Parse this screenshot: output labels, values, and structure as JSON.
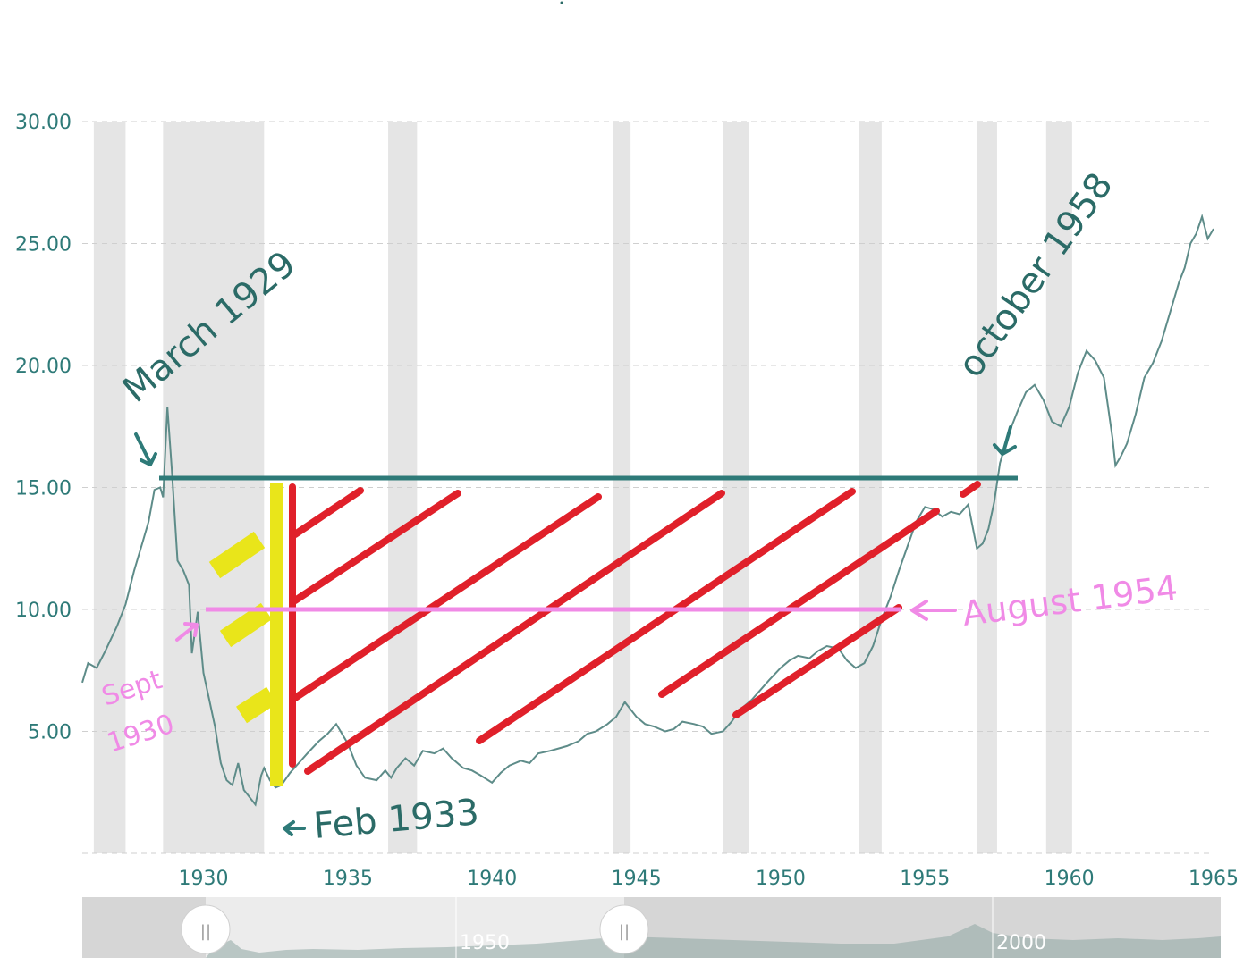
{
  "chart_data": {
    "type": "line",
    "title": "",
    "xlabel": "",
    "ylabel": "",
    "xlim": [
      1925.8,
      1965
    ],
    "ylim": [
      0,
      30
    ],
    "grid": true,
    "y_ticks": [
      "30.00",
      "25.00",
      "20.00",
      "15.00",
      "10.00",
      "5.00"
    ],
    "y_tick_values": [
      30,
      25,
      20,
      15,
      10,
      5
    ],
    "x_ticks": [
      "1930",
      "1935",
      "1940",
      "1945",
      "1950",
      "1955",
      "1960",
      "1965"
    ],
    "x_tick_values": [
      1930,
      1935,
      1940,
      1945,
      1950,
      1955,
      1960,
      1965
    ],
    "recessions": [
      [
        1926.2,
        1927.3
      ],
      [
        1928.6,
        1932.1
      ],
      [
        1936.4,
        1937.4
      ],
      [
        1944.2,
        1944.8
      ],
      [
        1948.0,
        1948.9
      ],
      [
        1952.7,
        1953.5
      ],
      [
        1956.8,
        1957.5
      ],
      [
        1959.2,
        1960.1
      ]
    ],
    "series": [
      {
        "x": [
          1925.8,
          1926.0,
          1926.3,
          1926.6,
          1927.0,
          1927.3,
          1927.6,
          1927.9,
          1928.1,
          1928.3,
          1928.5,
          1928.6,
          1928.75,
          1928.9,
          1929.1,
          1929.3,
          1929.5,
          1929.6,
          1929.8,
          1930.0,
          1930.2,
          1930.4,
          1930.6,
          1930.8,
          1931.0,
          1931.2,
          1931.4,
          1931.6,
          1931.8,
          1932.0,
          1932.1,
          1932.3,
          1932.5,
          1932.7,
          1933.0,
          1933.3,
          1933.6,
          1934.0,
          1934.3,
          1934.6,
          1935.0,
          1935.3,
          1935.6,
          1936.0,
          1936.3,
          1936.5,
          1936.7,
          1937.0,
          1937.3,
          1937.6,
          1938.0,
          1938.3,
          1938.6,
          1939.0,
          1939.3,
          1939.6,
          1940.0,
          1940.3,
          1940.6,
          1941.0,
          1941.3,
          1941.6,
          1942.0,
          1942.3,
          1942.6,
          1943.0,
          1943.3,
          1943.6,
          1944.0,
          1944.3,
          1944.6,
          1945.0,
          1945.3,
          1945.6,
          1946.0,
          1946.3,
          1946.6,
          1947.0,
          1947.3,
          1947.6,
          1948.0,
          1948.3,
          1948.6,
          1949.0,
          1949.3,
          1949.6,
          1950.0,
          1950.3,
          1950.6,
          1951.0,
          1951.3,
          1951.6,
          1952.0,
          1952.3,
          1952.6,
          1952.9,
          1953.2,
          1953.5,
          1953.8,
          1954.1,
          1954.4,
          1954.7,
          1955.0,
          1955.3,
          1955.6,
          1955.9,
          1956.2,
          1956.5,
          1956.8,
          1957.0,
          1957.2,
          1957.4,
          1957.6,
          1957.9,
          1958.2,
          1958.5,
          1958.8,
          1959.1,
          1959.4,
          1959.7,
          1960.0,
          1960.3,
          1960.6,
          1960.9,
          1961.2,
          1961.5,
          1961.6,
          1961.8,
          1962.0,
          1962.3,
          1962.6,
          1962.9,
          1963.2,
          1963.5,
          1963.8,
          1964.0,
          1964.2,
          1964.4,
          1964.6,
          1964.8,
          1965.0
        ],
        "values": [
          7.0,
          7.8,
          7.6,
          8.3,
          9.3,
          10.2,
          11.6,
          12.8,
          13.6,
          14.9,
          15.0,
          14.6,
          18.3,
          15.8,
          12.0,
          11.6,
          11.0,
          8.2,
          9.9,
          7.4,
          6.3,
          5.2,
          3.7,
          3.0,
          2.8,
          3.7,
          2.6,
          2.3,
          2.0,
          3.2,
          3.5,
          3.0,
          2.7,
          2.8,
          3.3,
          3.7,
          4.1,
          4.6,
          4.9,
          5.3,
          4.5,
          3.6,
          3.1,
          3.0,
          3.4,
          3.1,
          3.5,
          3.9,
          3.6,
          4.2,
          4.1,
          4.3,
          3.9,
          3.5,
          3.4,
          3.2,
          2.9,
          3.3,
          3.6,
          3.8,
          3.7,
          4.1,
          4.2,
          4.3,
          4.4,
          4.6,
          4.9,
          5.0,
          5.3,
          5.6,
          6.2,
          5.6,
          5.3,
          5.2,
          5.0,
          5.1,
          5.4,
          5.3,
          5.2,
          4.9,
          5.0,
          5.4,
          5.9,
          6.3,
          6.7,
          7.1,
          7.6,
          7.9,
          8.1,
          8.0,
          8.3,
          8.5,
          8.4,
          7.9,
          7.6,
          7.8,
          8.5,
          9.6,
          10.5,
          11.6,
          12.6,
          13.6,
          14.2,
          14.1,
          13.8,
          14.0,
          13.9,
          14.3,
          12.5,
          12.7,
          13.3,
          14.4,
          16.0,
          17.2,
          18.1,
          18.9,
          19.2,
          18.6,
          17.7,
          17.5,
          18.3,
          19.7,
          20.6,
          20.2,
          19.5,
          17.0,
          15.9,
          16.3,
          16.8,
          18.0,
          19.5,
          20.1,
          21.0,
          22.2,
          23.4,
          24.0,
          25.0,
          25.4,
          26.1,
          25.2,
          25.6
        ]
      }
    ]
  },
  "annotations": {
    "march_1929": "March 1929",
    "october_1958": "october 1958",
    "feb_1933": "Feb 1933",
    "august_1954": "August 1954",
    "sept_line1": "Sept",
    "sept_line2": "1930"
  },
  "navigator": {
    "labels": [
      "1950",
      "2000"
    ],
    "handle_glyph": "||"
  },
  "colors": {
    "line": "#5e8c89",
    "grid": "#cfcfcf",
    "recession": "#e5e5e5",
    "teal_mark": "#2e7a78",
    "red_mark": "#e0202a",
    "yellow_mark": "#e9e51a",
    "pink_mark": "#f08ae6"
  }
}
